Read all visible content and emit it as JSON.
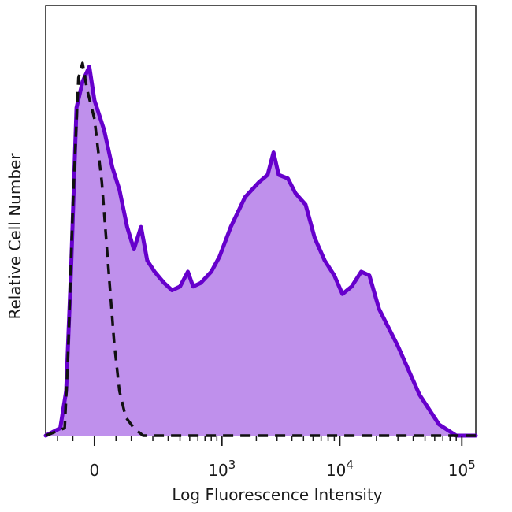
{
  "chart_data": {
    "type": "area",
    "xlabel": "Log Fluorescence Intensity",
    "ylabel": "Relative Cell Number",
    "x_scale": "biexponential",
    "xlim": [
      -150,
      130000
    ],
    "ylim": [
      0,
      1
    ],
    "grid": false,
    "x_ticks": [
      {
        "value": 0,
        "base": "0",
        "exp": ""
      },
      {
        "value": 1000,
        "base": "10",
        "exp": "3"
      },
      {
        "value": 10000,
        "base": "10",
        "exp": "4"
      },
      {
        "value": 100000,
        "base": "10",
        "exp": "5"
      }
    ],
    "series": [
      {
        "style": "filled-solid",
        "stroke_color": "#6600cc",
        "fill_color": "#bf90ec",
        "points": [
          [
            -150,
            0
          ],
          [
            -90,
            0.02
          ],
          [
            -70,
            0.12
          ],
          [
            -55,
            0.45
          ],
          [
            -40,
            0.88
          ],
          [
            -25,
            0.95
          ],
          [
            -10,
            0.99
          ],
          [
            0,
            0.9
          ],
          [
            20,
            0.82
          ],
          [
            40,
            0.72
          ],
          [
            60,
            0.66
          ],
          [
            85,
            0.56
          ],
          [
            110,
            0.5
          ],
          [
            140,
            0.56
          ],
          [
            170,
            0.47
          ],
          [
            210,
            0.44
          ],
          [
            270,
            0.41
          ],
          [
            330,
            0.39
          ],
          [
            400,
            0.4
          ],
          [
            480,
            0.44
          ],
          [
            540,
            0.4
          ],
          [
            640,
            0.41
          ],
          [
            800,
            0.44
          ],
          [
            950,
            0.48
          ],
          [
            1200,
            0.56
          ],
          [
            1600,
            0.64
          ],
          [
            2100,
            0.68
          ],
          [
            2500,
            0.7
          ],
          [
            2800,
            0.76
          ],
          [
            3100,
            0.7
          ],
          [
            3700,
            0.69
          ],
          [
            4300,
            0.65
          ],
          [
            5200,
            0.62
          ],
          [
            6200,
            0.53
          ],
          [
            7500,
            0.47
          ],
          [
            9000,
            0.43
          ],
          [
            10500,
            0.38
          ],
          [
            12500,
            0.4
          ],
          [
            15000,
            0.44
          ],
          [
            17500,
            0.43
          ],
          [
            21000,
            0.34
          ],
          [
            30000,
            0.24
          ],
          [
            45000,
            0.11
          ],
          [
            65000,
            0.03
          ],
          [
            90000,
            0
          ],
          [
            130000,
            0
          ]
        ]
      },
      {
        "style": "dashed",
        "stroke_color": "#111111",
        "points": [
          [
            -150,
            0
          ],
          [
            -75,
            0.02
          ],
          [
            -65,
            0.2
          ],
          [
            -50,
            0.62
          ],
          [
            -35,
            0.96
          ],
          [
            -25,
            1.0
          ],
          [
            -15,
            0.93
          ],
          [
            0,
            0.85
          ],
          [
            15,
            0.68
          ],
          [
            30,
            0.45
          ],
          [
            45,
            0.25
          ],
          [
            60,
            0.12
          ],
          [
            80,
            0.05
          ],
          [
            110,
            0.02
          ],
          [
            150,
            0
          ],
          [
            250,
            0
          ],
          [
            130000,
            0
          ]
        ]
      }
    ]
  }
}
